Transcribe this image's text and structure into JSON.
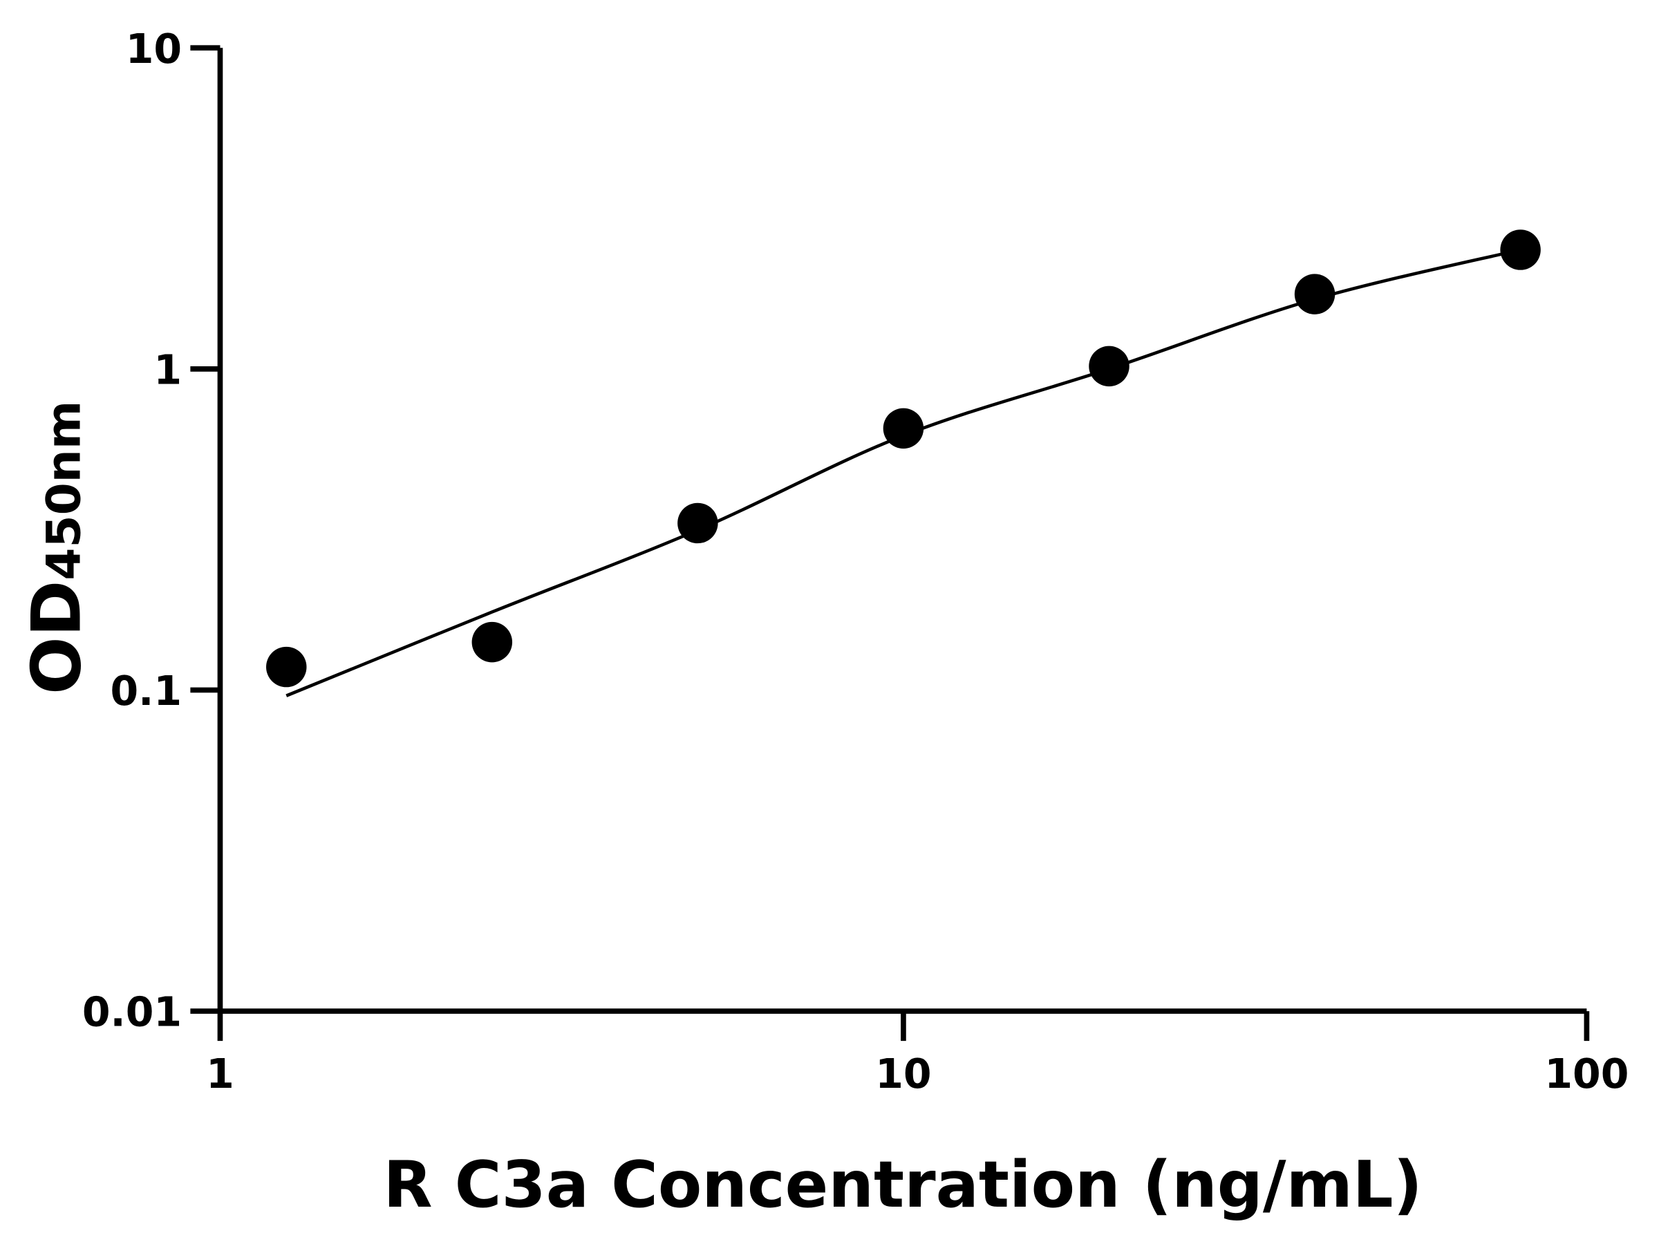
{
  "chart_data": {
    "type": "scatter",
    "title": "",
    "xlabel": "R C3a Concentration (ng/mL)",
    "ylabel": {
      "main": "OD",
      "subscript": "450nm"
    },
    "x_scale": "log",
    "y_scale": "log",
    "xlim": [
      1,
      100
    ],
    "ylim": [
      0.01,
      10
    ],
    "x_ticks": [
      {
        "value": 1,
        "label": "1"
      },
      {
        "value": 10,
        "label": "10"
      },
      {
        "value": 100,
        "label": "100"
      }
    ],
    "y_ticks": [
      {
        "value": 0.01,
        "label": "0.01"
      },
      {
        "value": 0.1,
        "label": "0.1"
      },
      {
        "value": 1,
        "label": "1"
      },
      {
        "value": 10,
        "label": "10"
      }
    ],
    "grid": false,
    "points": {
      "x": [
        1.25,
        2.5,
        5,
        10,
        20,
        40,
        80
      ],
      "y": [
        0.118,
        0.141,
        0.331,
        0.653,
        1.02,
        1.71,
        2.35
      ]
    },
    "fit_curve": {
      "x": [
        1.25,
        2.5,
        5,
        10,
        20,
        40,
        80
      ],
      "y": [
        0.096,
        0.175,
        0.315,
        0.62,
        1.0,
        1.65,
        2.35
      ]
    },
    "colors": {
      "marks": "#000000",
      "background": "#ffffff"
    }
  }
}
